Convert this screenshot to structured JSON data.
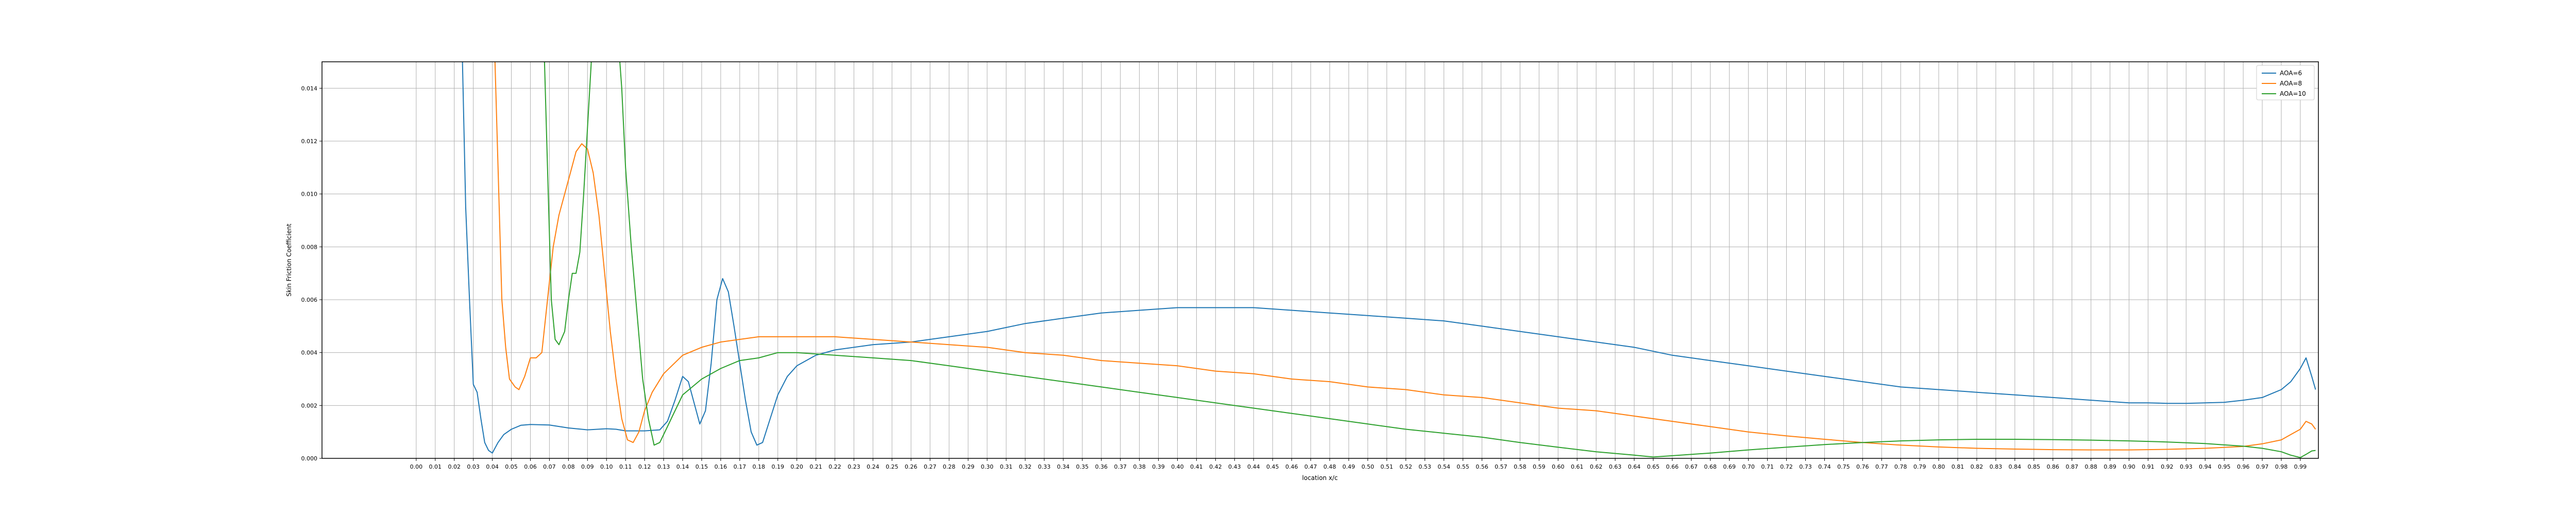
{
  "chart_data": {
    "type": "line",
    "title": "",
    "xlabel": "location x/c",
    "ylabel": "Skin Friction Coefficient",
    "xlim": [
      -0.0495,
      0.9995
    ],
    "ylim": [
      0.0,
      0.015
    ],
    "grid": true,
    "legend_position": "top-right",
    "x_ticks": [
      "0.00",
      "0.01",
      "0.02",
      "0.03",
      "0.04",
      "0.05",
      "0.06",
      "0.07",
      "0.08",
      "0.09",
      "0.10",
      "0.11",
      "0.12",
      "0.13",
      "0.14",
      "0.15",
      "0.16",
      "0.17",
      "0.18",
      "0.19",
      "0.20",
      "0.21",
      "0.22",
      "0.23",
      "0.24",
      "0.25",
      "0.26",
      "0.27",
      "0.28",
      "0.29",
      "0.30",
      "0.31",
      "0.32",
      "0.33",
      "0.34",
      "0.35",
      "0.36",
      "0.37",
      "0.38",
      "0.39",
      "0.40",
      "0.41",
      "0.42",
      "0.43",
      "0.44",
      "0.45",
      "0.46",
      "0.47",
      "0.48",
      "0.49",
      "0.50",
      "0.51",
      "0.52",
      "0.53",
      "0.54",
      "0.55",
      "0.56",
      "0.57",
      "0.58",
      "0.59",
      "0.60",
      "0.61",
      "0.62",
      "0.63",
      "0.64",
      "0.65",
      "0.66",
      "0.67",
      "0.68",
      "0.69",
      "0.70",
      "0.71",
      "0.72",
      "0.73",
      "0.74",
      "0.75",
      "0.76",
      "0.77",
      "0.78",
      "0.79",
      "0.80",
      "0.81",
      "0.82",
      "0.83",
      "0.84",
      "0.85",
      "0.86",
      "0.87",
      "0.88",
      "0.89",
      "0.90",
      "0.91",
      "0.92",
      "0.93",
      "0.94",
      "0.95",
      "0.96",
      "0.97",
      "0.98",
      "0.99"
    ],
    "y_ticks": [
      "0.000",
      "0.002",
      "0.004",
      "0.006",
      "0.008",
      "0.010",
      "0.012",
      "0.014"
    ],
    "series": [
      {
        "name": "AOA=6",
        "color": "#1f77b4",
        "points": [
          [
            0.024,
            0.016
          ],
          [
            0.026,
            0.0095
          ],
          [
            0.028,
            0.006
          ],
          [
            0.03,
            0.0028
          ],
          [
            0.032,
            0.0025
          ],
          [
            0.034,
            0.0015
          ],
          [
            0.036,
            0.0006
          ],
          [
            0.038,
            0.0003
          ],
          [
            0.04,
            0.0002
          ],
          [
            0.043,
            0.0006
          ],
          [
            0.046,
            0.0009
          ],
          [
            0.05,
            0.0011
          ],
          [
            0.055,
            0.00125
          ],
          [
            0.06,
            0.00128
          ],
          [
            0.07,
            0.00126
          ],
          [
            0.08,
            0.00115
          ],
          [
            0.09,
            0.00108
          ],
          [
            0.1,
            0.00112
          ],
          [
            0.105,
            0.0011
          ],
          [
            0.11,
            0.00104
          ],
          [
            0.12,
            0.00104
          ],
          [
            0.128,
            0.00108
          ],
          [
            0.132,
            0.0014
          ],
          [
            0.136,
            0.0022
          ],
          [
            0.14,
            0.0031
          ],
          [
            0.143,
            0.0029
          ],
          [
            0.146,
            0.0021
          ],
          [
            0.149,
            0.0013
          ],
          [
            0.152,
            0.0018
          ],
          [
            0.155,
            0.0036
          ],
          [
            0.158,
            0.006
          ],
          [
            0.161,
            0.0068
          ],
          [
            0.164,
            0.0063
          ],
          [
            0.167,
            0.005
          ],
          [
            0.17,
            0.0036
          ],
          [
            0.173,
            0.0022
          ],
          [
            0.176,
            0.001
          ],
          [
            0.179,
            0.0005
          ],
          [
            0.182,
            0.0006
          ],
          [
            0.186,
            0.0015
          ],
          [
            0.19,
            0.0024
          ],
          [
            0.195,
            0.0031
          ],
          [
            0.2,
            0.0035
          ],
          [
            0.21,
            0.0039
          ],
          [
            0.22,
            0.0041
          ],
          [
            0.24,
            0.0043
          ],
          [
            0.26,
            0.0044
          ],
          [
            0.28,
            0.0046
          ],
          [
            0.3,
            0.0048
          ],
          [
            0.32,
            0.0051
          ],
          [
            0.34,
            0.0053
          ],
          [
            0.36,
            0.0055
          ],
          [
            0.38,
            0.0056
          ],
          [
            0.4,
            0.0057
          ],
          [
            0.42,
            0.0057
          ],
          [
            0.44,
            0.0057
          ],
          [
            0.46,
            0.0056
          ],
          [
            0.48,
            0.0055
          ],
          [
            0.5,
            0.0054
          ],
          [
            0.52,
            0.0053
          ],
          [
            0.54,
            0.0052
          ],
          [
            0.56,
            0.005
          ],
          [
            0.58,
            0.0048
          ],
          [
            0.6,
            0.0046
          ],
          [
            0.62,
            0.0044
          ],
          [
            0.64,
            0.0042
          ],
          [
            0.66,
            0.0039
          ],
          [
            0.68,
            0.0037
          ],
          [
            0.7,
            0.0035
          ],
          [
            0.72,
            0.0033
          ],
          [
            0.74,
            0.0031
          ],
          [
            0.76,
            0.0029
          ],
          [
            0.78,
            0.0027
          ],
          [
            0.8,
            0.0026
          ],
          [
            0.82,
            0.0025
          ],
          [
            0.84,
            0.0024
          ],
          [
            0.86,
            0.0023
          ],
          [
            0.88,
            0.0022
          ],
          [
            0.9,
            0.0021
          ],
          [
            0.91,
            0.0021
          ],
          [
            0.92,
            0.00208
          ],
          [
            0.93,
            0.00208
          ],
          [
            0.94,
            0.0021
          ],
          [
            0.95,
            0.00212
          ],
          [
            0.96,
            0.0022
          ],
          [
            0.97,
            0.0023
          ],
          [
            0.98,
            0.0026
          ],
          [
            0.985,
            0.0029
          ],
          [
            0.99,
            0.0034
          ],
          [
            0.993,
            0.0038
          ],
          [
            0.996,
            0.0031
          ],
          [
            0.998,
            0.0026
          ]
        ]
      },
      {
        "name": "AOA=8",
        "color": "#ff7f0e",
        "points": [
          [
            0.041,
            0.016
          ],
          [
            0.043,
            0.011
          ],
          [
            0.045,
            0.006
          ],
          [
            0.047,
            0.0042
          ],
          [
            0.049,
            0.003
          ],
          [
            0.052,
            0.0027
          ],
          [
            0.054,
            0.0026
          ],
          [
            0.057,
            0.0031
          ],
          [
            0.06,
            0.0038
          ],
          [
            0.063,
            0.0038
          ],
          [
            0.066,
            0.004
          ],
          [
            0.069,
            0.006
          ],
          [
            0.072,
            0.008
          ],
          [
            0.075,
            0.0092
          ],
          [
            0.078,
            0.01
          ],
          [
            0.081,
            0.0108
          ],
          [
            0.084,
            0.0116
          ],
          [
            0.087,
            0.0119
          ],
          [
            0.09,
            0.0117
          ],
          [
            0.093,
            0.0108
          ],
          [
            0.096,
            0.0092
          ],
          [
            0.099,
            0.007
          ],
          [
            0.102,
            0.0048
          ],
          [
            0.105,
            0.003
          ],
          [
            0.108,
            0.0015
          ],
          [
            0.111,
            0.0007
          ],
          [
            0.114,
            0.0006
          ],
          [
            0.117,
            0.001
          ],
          [
            0.12,
            0.0018
          ],
          [
            0.124,
            0.0025
          ],
          [
            0.13,
            0.0032
          ],
          [
            0.14,
            0.0039
          ],
          [
            0.15,
            0.0042
          ],
          [
            0.16,
            0.0044
          ],
          [
            0.17,
            0.0045
          ],
          [
            0.18,
            0.0046
          ],
          [
            0.2,
            0.0046
          ],
          [
            0.22,
            0.0046
          ],
          [
            0.24,
            0.0045
          ],
          [
            0.26,
            0.0044
          ],
          [
            0.28,
            0.0043
          ],
          [
            0.3,
            0.0042
          ],
          [
            0.32,
            0.004
          ],
          [
            0.34,
            0.0039
          ],
          [
            0.36,
            0.0037
          ],
          [
            0.38,
            0.0036
          ],
          [
            0.4,
            0.0035
          ],
          [
            0.42,
            0.0033
          ],
          [
            0.44,
            0.0032
          ],
          [
            0.46,
            0.003
          ],
          [
            0.48,
            0.0029
          ],
          [
            0.5,
            0.0027
          ],
          [
            0.52,
            0.0026
          ],
          [
            0.54,
            0.0024
          ],
          [
            0.56,
            0.0023
          ],
          [
            0.58,
            0.0021
          ],
          [
            0.6,
            0.0019
          ],
          [
            0.62,
            0.0018
          ],
          [
            0.64,
            0.0016
          ],
          [
            0.66,
            0.0014
          ],
          [
            0.68,
            0.0012
          ],
          [
            0.7,
            0.001
          ],
          [
            0.72,
            0.00085
          ],
          [
            0.74,
            0.00072
          ],
          [
            0.76,
            0.0006
          ],
          [
            0.78,
            0.0005
          ],
          [
            0.8,
            0.00043
          ],
          [
            0.82,
            0.00038
          ],
          [
            0.84,
            0.00035
          ],
          [
            0.86,
            0.00033
          ],
          [
            0.88,
            0.00032
          ],
          [
            0.9,
            0.00032
          ],
          [
            0.92,
            0.00034
          ],
          [
            0.94,
            0.00038
          ],
          [
            0.96,
            0.00045
          ],
          [
            0.97,
            0.00055
          ],
          [
            0.98,
            0.0007
          ],
          [
            0.985,
            0.0009
          ],
          [
            0.99,
            0.0011
          ],
          [
            0.993,
            0.0014
          ],
          [
            0.996,
            0.0013
          ],
          [
            0.998,
            0.0011
          ]
        ]
      },
      {
        "name": "AOA=10",
        "color": "#2ca02c",
        "points": [
          [
            0.067,
            0.016
          ],
          [
            0.069,
            0.011
          ],
          [
            0.071,
            0.006
          ],
          [
            0.073,
            0.0045
          ],
          [
            0.075,
            0.0043
          ],
          [
            0.078,
            0.0048
          ],
          [
            0.08,
            0.006
          ],
          [
            0.082,
            0.007
          ],
          [
            0.084,
            0.007
          ],
          [
            0.086,
            0.0078
          ],
          [
            0.088,
            0.01
          ],
          [
            0.09,
            0.0125
          ],
          [
            0.092,
            0.015
          ],
          [
            0.094,
            0.016
          ],
          [
            0.106,
            0.016
          ],
          [
            0.108,
            0.014
          ],
          [
            0.11,
            0.011
          ],
          [
            0.113,
            0.008
          ],
          [
            0.116,
            0.0055
          ],
          [
            0.119,
            0.003
          ],
          [
            0.122,
            0.0015
          ],
          [
            0.125,
            0.0005
          ],
          [
            0.128,
            0.0006
          ],
          [
            0.132,
            0.0012
          ],
          [
            0.136,
            0.0018
          ],
          [
            0.14,
            0.0024
          ],
          [
            0.15,
            0.003
          ],
          [
            0.16,
            0.0034
          ],
          [
            0.17,
            0.0037
          ],
          [
            0.18,
            0.0038
          ],
          [
            0.19,
            0.004
          ],
          [
            0.2,
            0.004
          ],
          [
            0.22,
            0.0039
          ],
          [
            0.24,
            0.0038
          ],
          [
            0.26,
            0.0037
          ],
          [
            0.28,
            0.0035
          ],
          [
            0.3,
            0.0033
          ],
          [
            0.32,
            0.0031
          ],
          [
            0.34,
            0.0029
          ],
          [
            0.36,
            0.0027
          ],
          [
            0.38,
            0.0025
          ],
          [
            0.4,
            0.0023
          ],
          [
            0.42,
            0.0021
          ],
          [
            0.44,
            0.0019
          ],
          [
            0.46,
            0.0017
          ],
          [
            0.48,
            0.0015
          ],
          [
            0.5,
            0.0013
          ],
          [
            0.52,
            0.0011
          ],
          [
            0.54,
            0.00095
          ],
          [
            0.56,
            0.0008
          ],
          [
            0.58,
            0.0006
          ],
          [
            0.6,
            0.00042
          ],
          [
            0.62,
            0.00025
          ],
          [
            0.64,
            0.00012
          ],
          [
            0.65,
            5e-05
          ],
          [
            0.66,
            0.0001
          ],
          [
            0.68,
            0.0002
          ],
          [
            0.7,
            0.00032
          ],
          [
            0.72,
            0.00042
          ],
          [
            0.74,
            0.00052
          ],
          [
            0.76,
            0.0006
          ],
          [
            0.78,
            0.00066
          ],
          [
            0.8,
            0.0007
          ],
          [
            0.82,
            0.00072
          ],
          [
            0.84,
            0.00072
          ],
          [
            0.86,
            0.00071
          ],
          [
            0.88,
            0.00069
          ],
          [
            0.9,
            0.00066
          ],
          [
            0.92,
            0.00062
          ],
          [
            0.94,
            0.00056
          ],
          [
            0.96,
            0.00046
          ],
          [
            0.97,
            0.00038
          ],
          [
            0.98,
            0.00025
          ],
          [
            0.985,
            0.00012
          ],
          [
            0.99,
            3e-05
          ],
          [
            0.993,
            0.00015
          ],
          [
            0.996,
            0.00028
          ],
          [
            0.998,
            0.0003
          ]
        ]
      }
    ]
  }
}
